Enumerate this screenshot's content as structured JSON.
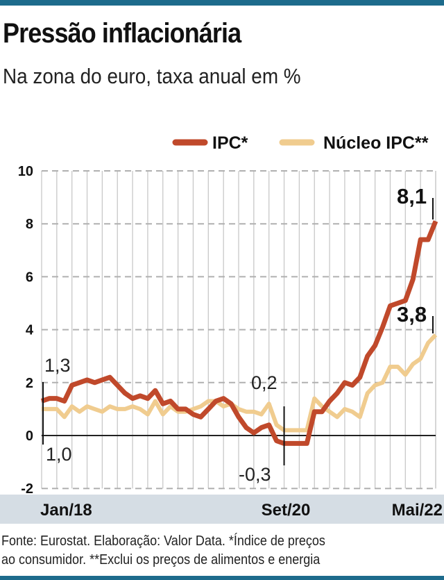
{
  "title": "Pressão inflacionária",
  "subtitle": "Na zona do euro, taxa anual em %",
  "source": [
    "Fonte: Eurostat. Elaboração: Valor Data. *Índice de preços",
    "ao consumidor. **Exclui os preços de alimentos e energia"
  ],
  "chart_data": {
    "type": "line",
    "ylim": [
      -2,
      10
    ],
    "yticks": [
      "10",
      "8",
      "6",
      "4",
      "2",
      "0",
      "-2"
    ],
    "ytick_values": [
      10,
      8,
      6,
      4,
      2,
      0,
      -2
    ],
    "x_start": "Jan/18",
    "x_labels": [
      {
        "label": "Jan/18",
        "index": 0
      },
      {
        "label": "Set/20",
        "index": 32
      },
      {
        "label": "Mai/22",
        "index": 52
      }
    ],
    "legend": "top-right",
    "series": [
      {
        "name": "IPC*",
        "color": "#c0492b",
        "values": [
          1.3,
          1.4,
          1.4,
          1.3,
          1.9,
          2.0,
          2.1,
          2.0,
          2.1,
          2.2,
          1.9,
          1.6,
          1.4,
          1.5,
          1.4,
          1.7,
          1.2,
          1.3,
          1.0,
          1.0,
          0.8,
          0.7,
          1.0,
          1.3,
          1.4,
          1.2,
          0.7,
          0.3,
          0.1,
          0.3,
          0.4,
          -0.2,
          -0.3,
          -0.3,
          -0.3,
          -0.3,
          0.9,
          0.9,
          1.3,
          1.6,
          2.0,
          1.9,
          2.2,
          3.0,
          3.4,
          4.1,
          4.9,
          5.0,
          5.1,
          5.9,
          7.4,
          7.4,
          8.1
        ]
      },
      {
        "name": "Núcleo IPC**",
        "color": "#f0cc8f",
        "values": [
          1.0,
          1.0,
          1.0,
          0.7,
          1.1,
          0.9,
          1.1,
          1.0,
          0.9,
          1.1,
          1.0,
          1.0,
          1.1,
          1.0,
          0.8,
          1.3,
          0.8,
          1.1,
          0.9,
          0.9,
          1.0,
          1.1,
          1.3,
          1.3,
          1.1,
          1.2,
          1.0,
          0.9,
          0.9,
          0.8,
          1.2,
          0.4,
          0.2,
          0.2,
          0.2,
          0.2,
          1.4,
          1.1,
          0.9,
          0.7,
          1.0,
          0.9,
          0.7,
          1.6,
          1.9,
          2.0,
          2.6,
          2.6,
          2.3,
          2.7,
          2.9,
          3.5,
          3.8
        ]
      }
    ],
    "annotations": [
      {
        "text": "1,3",
        "series": 0,
        "index": 0
      },
      {
        "text": "1,0",
        "series": 1,
        "index": 0
      },
      {
        "text": "0,2",
        "series": 1,
        "index": 32
      },
      {
        "text": "-0,3",
        "series": 0,
        "index": 32
      },
      {
        "text": "8,1",
        "series": 0,
        "index": 52
      },
      {
        "text": "3,8",
        "series": 1,
        "index": 52
      }
    ]
  }
}
